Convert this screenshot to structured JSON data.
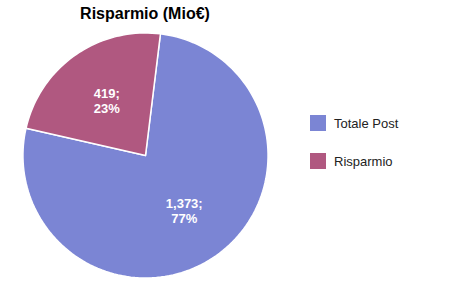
{
  "chart_data": {
    "type": "pie",
    "title": "Risparmio (Mio€)",
    "categories": [
      "Totale Post",
      "Risparmio"
    ],
    "values": [
      1373,
      419
    ],
    "value_labels": [
      "1,373;",
      "419;"
    ],
    "percentages": [
      77,
      23
    ],
    "percentage_labels": [
      "77%",
      "23%"
    ],
    "colors": [
      "#7B85D4",
      "#B05880"
    ],
    "data_labels": true,
    "legend": "right"
  }
}
